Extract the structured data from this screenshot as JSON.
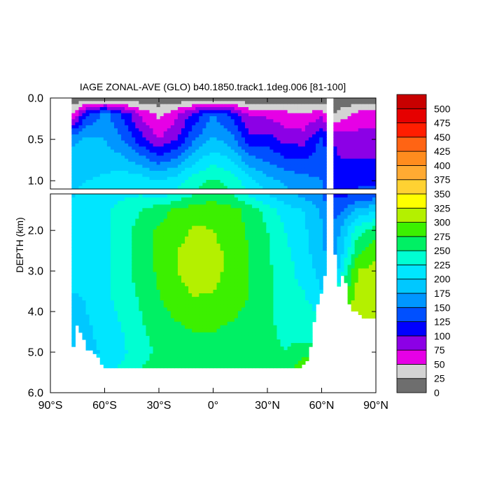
{
  "chart_data": {
    "type": "heatmap",
    "title": "IAGE ZONAL-AVE (GLO) b40.1850.track1.1deg.006 [81-100]",
    "ylabel": "DEPTH (km)",
    "xlabel": "",
    "xlim": [
      -90,
      90
    ],
    "ylim": [
      0,
      6
    ],
    "y_break_km": 1.1,
    "x_ticks": [
      {
        "value": -90,
        "label": "90°S"
      },
      {
        "value": -60,
        "label": "60°S"
      },
      {
        "value": -30,
        "label": "30°S"
      },
      {
        "value": 0,
        "label": "0°"
      },
      {
        "value": 30,
        "label": "30°N"
      },
      {
        "value": 60,
        "label": "60°N"
      },
      {
        "value": 90,
        "label": "90°N"
      }
    ],
    "y_ticks_upper": [
      {
        "value": 0.0,
        "label": "0.0"
      },
      {
        "value": 0.5,
        "label": "0.5"
      },
      {
        "value": 1.0,
        "label": "1.0"
      }
    ],
    "y_ticks_lower": [
      {
        "value": 2.0,
        "label": "2.0"
      },
      {
        "value": 3.0,
        "label": "3.0"
      },
      {
        "value": 4.0,
        "label": "4.0"
      },
      {
        "value": 5.0,
        "label": "5.0"
      },
      {
        "value": 6.0,
        "label": "6.0"
      }
    ],
    "colorbar": {
      "levels": [
        "0",
        "25",
        "50",
        "75",
        "100",
        "125",
        "150",
        "175",
        "200",
        "225",
        "250",
        "275",
        "300",
        "325",
        "350",
        "375",
        "400",
        "425",
        "450",
        "475",
        "500"
      ],
      "colors": [
        "#6e6e6e",
        "#d3d3d3",
        "#e600e6",
        "#8c00e6",
        "#0000ff",
        "#0050ff",
        "#0096ff",
        "#00c8ff",
        "#00e6ff",
        "#00ffd2",
        "#00f064",
        "#3cf000",
        "#b4f000",
        "#ffff00",
        "#ffd232",
        "#ffaa32",
        "#ff8c1e",
        "#ff6414",
        "#ff1e00",
        "#e60000",
        "#c80000"
      ]
    },
    "age_field_years": {
      "latitudes": [
        -78,
        -70,
        -60,
        -50,
        -40,
        -30,
        -20,
        -10,
        0,
        10,
        20,
        30,
        40,
        50,
        60,
        66,
        72,
        80,
        90
      ],
      "depths_km": [
        0.0,
        0.2,
        0.5,
        1.0,
        1.5,
        2.0,
        2.5,
        3.0,
        3.5,
        4.0,
        4.5,
        5.0,
        5.4
      ],
      "values": [
        [
          5,
          5,
          5,
          5,
          5,
          5,
          5,
          5,
          5,
          5,
          5,
          5,
          5,
          5,
          5,
          5,
          5,
          5,
          5
        ],
        [
          50,
          120,
          160,
          120,
          70,
          45,
          70,
          110,
          150,
          120,
          70,
          70,
          60,
          50,
          70,
          20,
          40,
          60,
          60
        ],
        [
          170,
          180,
          175,
          150,
          110,
          75,
          100,
          150,
          180,
          160,
          110,
          110,
          90,
          90,
          130,
          100,
          90,
          85,
          85
        ],
        [
          195,
          200,
          205,
          215,
          215,
          200,
          215,
          240,
          255,
          240,
          210,
          185,
          170,
          160,
          150,
          110,
          110,
          115,
          115
        ],
        [
          210,
          215,
          220,
          235,
          250,
          265,
          280,
          290,
          290,
          285,
          265,
          240,
          210,
          200,
          170,
          140,
          150,
          180,
          195
        ],
        [
          210,
          215,
          220,
          240,
          260,
          280,
          290,
          305,
          300,
          290,
          270,
          250,
          225,
          205,
          180,
          150,
          185,
          240,
          265
        ],
        [
          210,
          210,
          220,
          240,
          260,
          280,
          300,
          310,
          305,
          295,
          275,
          255,
          230,
          210,
          180,
          160,
          200,
          270,
          290
        ],
        [
          205,
          210,
          220,
          240,
          260,
          280,
          300,
          315,
          305,
          295,
          275,
          255,
          235,
          215,
          190,
          170,
          230,
          300,
          310
        ],
        [
          200,
          205,
          220,
          240,
          255,
          275,
          290,
          305,
          300,
          295,
          275,
          255,
          235,
          225,
          200,
          210,
          260,
          310,
          320
        ],
        [
          175,
          200,
          215,
          230,
          250,
          270,
          280,
          285,
          285,
          280,
          270,
          255,
          240,
          235,
          220,
          250,
          300,
          310,
          320
        ],
        [
          180,
          195,
          210,
          225,
          245,
          260,
          270,
          275,
          275,
          270,
          265,
          255,
          245,
          240,
          240,
          270,
          300,
          310,
          320
        ],
        [
          180,
          190,
          205,
          220,
          240,
          255,
          265,
          270,
          265,
          265,
          260,
          255,
          250,
          260,
          260,
          280,
          300,
          310,
          320
        ],
        [
          185,
          195,
          210,
          230,
          250,
          260,
          265,
          265,
          260,
          260,
          260,
          260,
          260,
          300,
          300,
          300,
          300,
          310,
          320
        ]
      ]
    }
  }
}
